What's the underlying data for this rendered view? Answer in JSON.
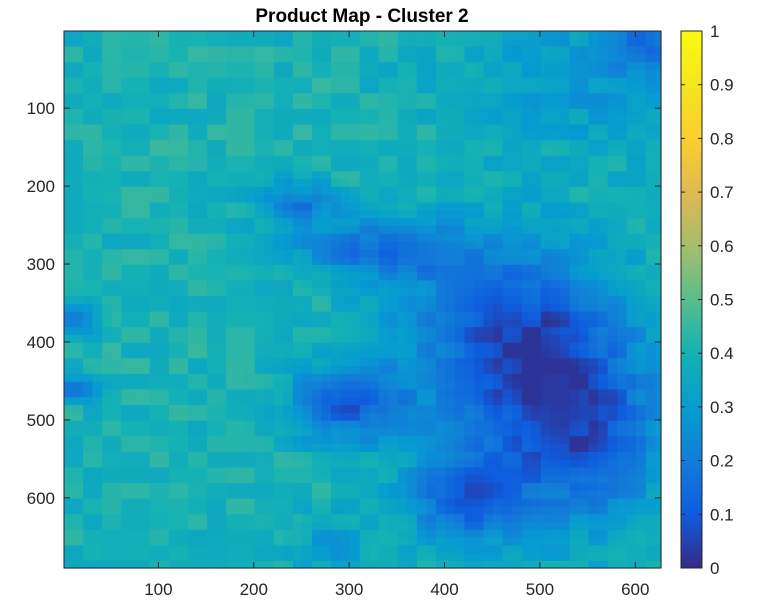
{
  "chart_data": {
    "type": "heatmap",
    "title": "Product Map - Cluster 2",
    "xlabel": "",
    "ylabel": "",
    "x_range": [
      1,
      627
    ],
    "y_range": [
      1,
      690
    ],
    "y_direction": "down",
    "x_ticks": [
      100,
      200,
      300,
      400,
      500,
      600
    ],
    "x_tick_labels": [
      "100",
      "200",
      "300",
      "400",
      "500",
      "600"
    ],
    "y_ticks": [
      100,
      200,
      300,
      400,
      500,
      600
    ],
    "y_tick_labels": [
      "100",
      "200",
      "300",
      "400",
      "500",
      "600"
    ],
    "colorbar": {
      "colormap": "parula",
      "range": [
        0,
        1
      ],
      "ticks": [
        0,
        0.1,
        0.2,
        0.3,
        0.4,
        0.5,
        0.6,
        0.7,
        0.8,
        0.9,
        1
      ],
      "tick_labels": [
        "0",
        "0.1",
        "0.2",
        "0.3",
        "0.4",
        "0.5",
        "0.6",
        "0.7",
        "0.8",
        "0.9",
        "1"
      ]
    },
    "background_value": 0.4,
    "regions": [
      {
        "description": "upper-left dominant area",
        "value": 0.42
      },
      {
        "description": "upper-right edge",
        "value": 0.3
      },
      {
        "description": "central-right dark region",
        "value": 0.08
      },
      {
        "description": "lower-center dark blotches",
        "value": 0.1
      },
      {
        "description": "left edge dark spots near y=370 and y=460",
        "value": 0.15
      },
      {
        "description": "top-right corner",
        "value": 0.08
      }
    ],
    "grid": false,
    "legend": "none"
  }
}
